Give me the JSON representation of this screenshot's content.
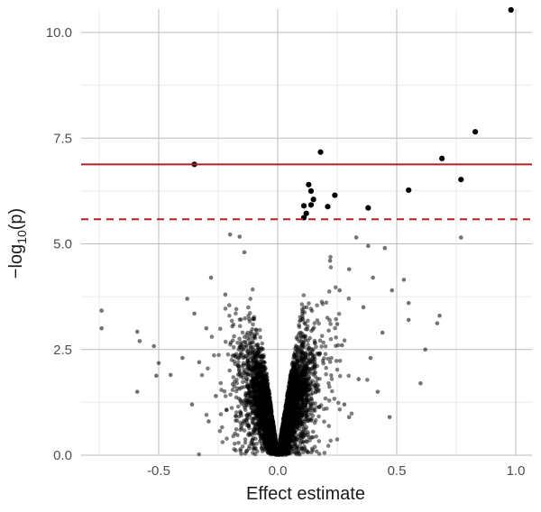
{
  "chart_data": {
    "type": "scatter",
    "title": "",
    "xlabel": "Effect estimate",
    "ylabel": "−log10(p)",
    "ylabel_parts": {
      "prefix": "−log",
      "subscript": "10",
      "suffix": "(p)"
    },
    "xlim": [
      -0.8,
      1.05
    ],
    "ylim": [
      0,
      10.55
    ],
    "x_ticks": [
      -0.5,
      0.0,
      0.5,
      1.0
    ],
    "x_tick_labels": [
      "-0.5",
      "0.0",
      "0.5",
      "1.0"
    ],
    "y_ticks": [
      0.0,
      2.5,
      5.0,
      7.5,
      10.0
    ],
    "y_tick_labels": [
      "0.0",
      "2.5",
      "5.0",
      "7.5",
      "10.0"
    ],
    "grid": true,
    "legend": "none",
    "thresholds": [
      {
        "y": 6.88,
        "style": "solid",
        "color": "#b22222"
      },
      {
        "y": 5.58,
        "style": "dashed",
        "color": "#b22222"
      }
    ],
    "significant_points": [
      {
        "x": 0.98,
        "y": 10.55
      },
      {
        "x": 0.83,
        "y": 7.65
      },
      {
        "x": 0.69,
        "y": 7.02
      },
      {
        "x": 0.77,
        "y": 6.52
      },
      {
        "x": 0.55,
        "y": 6.27
      },
      {
        "x": 0.18,
        "y": 7.17
      },
      {
        "x": 0.13,
        "y": 6.4
      },
      {
        "x": 0.14,
        "y": 6.25
      },
      {
        "x": 0.15,
        "y": 6.05
      },
      {
        "x": 0.14,
        "y": 5.92
      },
      {
        "x": 0.24,
        "y": 6.15
      },
      {
        "x": 0.21,
        "y": 5.88
      },
      {
        "x": 0.11,
        "y": 5.9
      },
      {
        "x": 0.12,
        "y": 5.72
      },
      {
        "x": 0.11,
        "y": 5.62
      },
      {
        "x": 0.38,
        "y": 5.85
      },
      {
        "x": -0.35,
        "y": 6.88
      }
    ],
    "background_points": [
      {
        "x": -0.74,
        "y": 3.42
      },
      {
        "x": -0.74,
        "y": 3.0
      },
      {
        "x": -0.59,
        "y": 2.92
      },
      {
        "x": -0.58,
        "y": 2.7
      },
      {
        "x": -0.52,
        "y": 2.58
      },
      {
        "x": -0.5,
        "y": 2.18
      },
      {
        "x": -0.51,
        "y": 1.88
      },
      {
        "x": -0.59,
        "y": 1.5
      },
      {
        "x": -0.45,
        "y": 1.9
      },
      {
        "x": -0.4,
        "y": 2.3
      },
      {
        "x": -0.38,
        "y": 3.7
      },
      {
        "x": -0.35,
        "y": 3.35
      },
      {
        "x": -0.2,
        "y": 5.22
      },
      {
        "x": -0.16,
        "y": 5.17
      },
      {
        "x": -0.14,
        "y": 4.8
      },
      {
        "x": 0.33,
        "y": 5.15
      },
      {
        "x": 0.38,
        "y": 4.95
      },
      {
        "x": 0.4,
        "y": 4.2
      },
      {
        "x": 0.45,
        "y": 4.9
      },
      {
        "x": 0.48,
        "y": 3.9
      },
      {
        "x": 0.53,
        "y": 4.15
      },
      {
        "x": 0.55,
        "y": 3.6
      },
      {
        "x": 0.55,
        "y": 3.2
      },
      {
        "x": 0.6,
        "y": 1.7
      },
      {
        "x": 0.62,
        "y": 2.5
      },
      {
        "x": 0.67,
        "y": 3.12
      },
      {
        "x": 0.68,
        "y": 3.3
      },
      {
        "x": 0.77,
        "y": 5.15
      },
      {
        "x": 0.47,
        "y": 0.9
      },
      {
        "x": 0.39,
        "y": 2.3
      },
      {
        "x": 0.42,
        "y": 1.5
      },
      {
        "x": 0.44,
        "y": 2.9
      },
      {
        "x": 0.36,
        "y": 3.5
      },
      {
        "x": 0.3,
        "y": 4.4
      },
      {
        "x": -0.28,
        "y": 4.2
      },
      {
        "x": -0.3,
        "y": 3.0
      },
      {
        "x": -0.33,
        "y": 2.2
      },
      {
        "x": -0.26,
        "y": 1.4
      },
      {
        "x": -0.36,
        "y": 1.2
      },
      {
        "x": -0.29,
        "y": 0.8
      },
      {
        "x": -0.22,
        "y": 3.8
      },
      {
        "x": 0.28,
        "y": 1.2
      },
      {
        "x": 0.3,
        "y": 0.9
      },
      {
        "x": 0.34,
        "y": 1.8
      },
      {
        "x": 0.27,
        "y": 2.6
      },
      {
        "x": 0.25,
        "y": 3.1
      },
      {
        "x": 0.22,
        "y": 4.6
      },
      {
        "x": 0.26,
        "y": 3.9
      }
    ],
    "bulk_cloud": {
      "v_shape": "density of points near zero effect",
      "approx_max_y_near_zero": 5.1
    }
  }
}
